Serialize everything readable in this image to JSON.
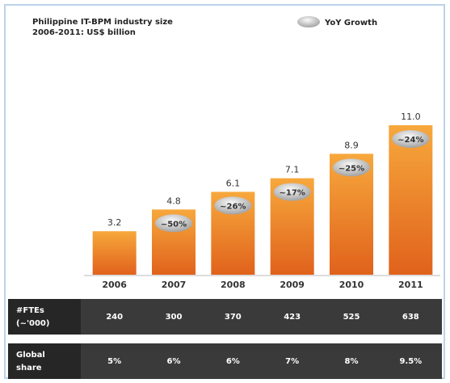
{
  "chart_data": {
    "type": "bar",
    "title": "Philippine IT-BPM industry size",
    "subtitle": "2006-2011: US$ billion",
    "categories": [
      "2006",
      "2007",
      "2008",
      "2009",
      "2010",
      "2011"
    ],
    "values": [
      3.2,
      4.8,
      6.1,
      7.1,
      8.9,
      11.0
    ],
    "value_labels": [
      "3.2",
      "4.8",
      "6.1",
      "7.1",
      "8.9",
      "11.0"
    ],
    "color": "#ec8a2c",
    "growth": {
      "name": "YoY Growth",
      "labels": [
        null,
        "~50%",
        "~26%",
        "~17%",
        "~25%",
        "~24%"
      ]
    },
    "table": {
      "rows": [
        {
          "label": [
            "#FTEs",
            "(~'000)"
          ],
          "cells": [
            240,
            300,
            370,
            423,
            525,
            638
          ]
        },
        {
          "label": [
            "Global",
            "share"
          ],
          "cells": [
            "5%",
            "6%",
            "6%",
            "7%",
            "8%",
            "9.5%"
          ]
        }
      ]
    }
  }
}
